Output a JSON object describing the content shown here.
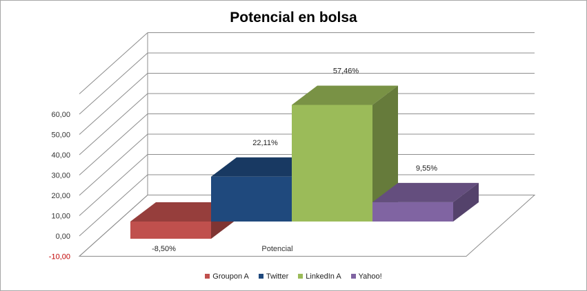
{
  "chart_data": {
    "type": "bar",
    "title": "Potencial en bolsa",
    "categories": [
      "Potencial"
    ],
    "series": [
      {
        "name": "Groupon A",
        "values": [
          -8.5
        ],
        "label": "-8,50%",
        "color": "#c0504d"
      },
      {
        "name": "Twitter",
        "values": [
          22.11
        ],
        "label": "22,11%",
        "color": "#1f497d"
      },
      {
        "name": "LinkedIn A",
        "values": [
          57.46
        ],
        "label": "57,46%",
        "color": "#9bbb59"
      },
      {
        "name": "Yahoo!",
        "values": [
          9.55
        ],
        "label": "9,55%",
        "color": "#8064a2"
      }
    ],
    "yticks": [
      "-10,00",
      "0,00",
      "10,00",
      "20,00",
      "30,00",
      "40,00",
      "50,00",
      "60,00"
    ],
    "ylim": [
      -10,
      60
    ],
    "grid": true,
    "legend": "bottom"
  }
}
